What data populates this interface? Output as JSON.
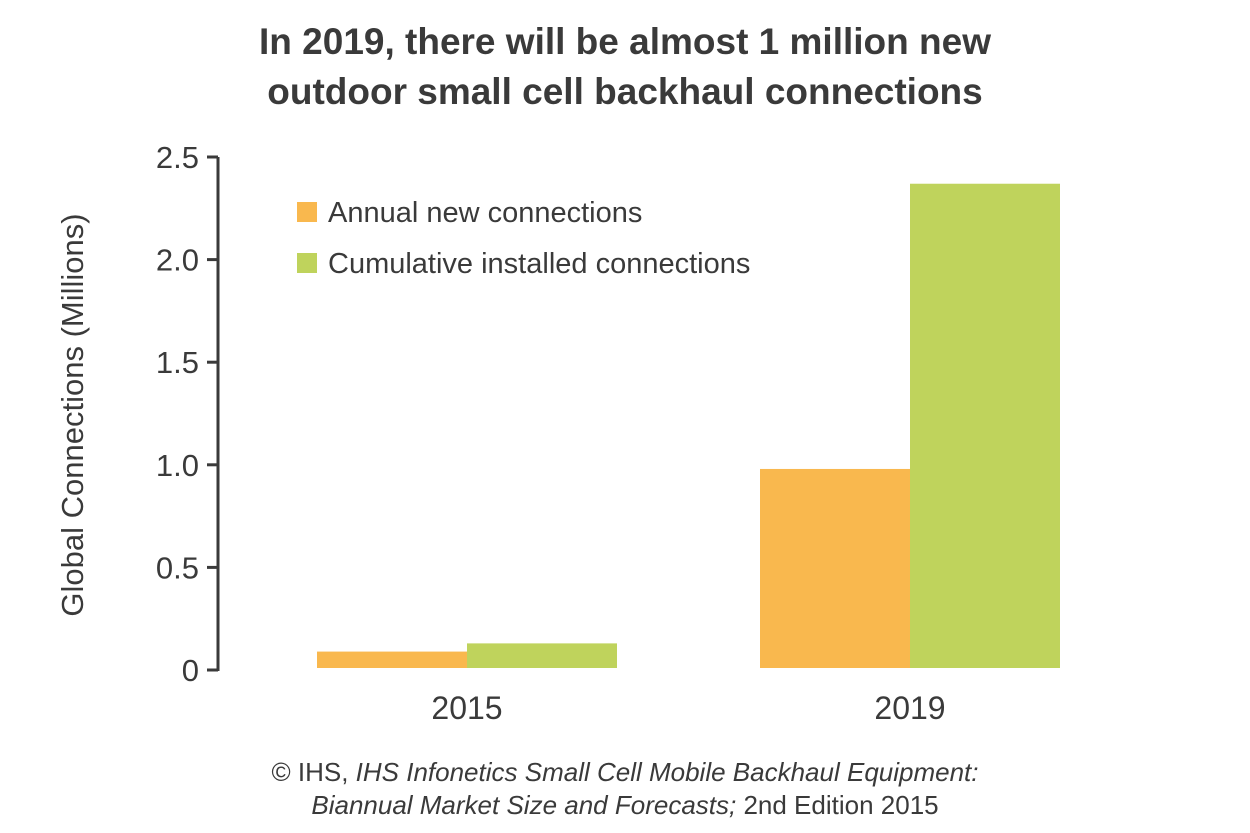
{
  "chart_data": {
    "type": "bar",
    "title": "In 2019, there will be almost 1 million new outdoor small cell backhaul connections",
    "title_lines": [
      "In 2019, there will be almost 1 million new",
      "outdoor small cell backhaul connections"
    ],
    "categories": [
      "2015",
      "2019"
    ],
    "series": [
      {
        "name": "Annual new connections",
        "color": "#F9B84E",
        "values": [
          0.08,
          0.97
        ]
      },
      {
        "name": "Cumulative installed connections",
        "color": "#BFD35C",
        "values": [
          0.12,
          2.36
        ]
      }
    ],
    "xlabel": "",
    "ylabel": "Global Connections (Millions)",
    "ylim": [
      0,
      2.5
    ],
    "yticks": [
      0,
      0.5,
      1.0,
      1.5,
      2.0,
      2.5
    ],
    "ytick_labels": [
      "0",
      "0.5",
      "1.0",
      "1.5",
      "2.0",
      "2.5"
    ],
    "legend_position": "top-left",
    "grid": false,
    "axis_color": "#3a3a3a"
  },
  "source": {
    "prefix": "© IHS, ",
    "italic_line1": "IHS Infonetics Small Cell Mobile Backhaul Equipment:",
    "italic_line2": "Biannual Market Size and Forecasts;",
    "suffix": " 2nd Edition 2015"
  }
}
